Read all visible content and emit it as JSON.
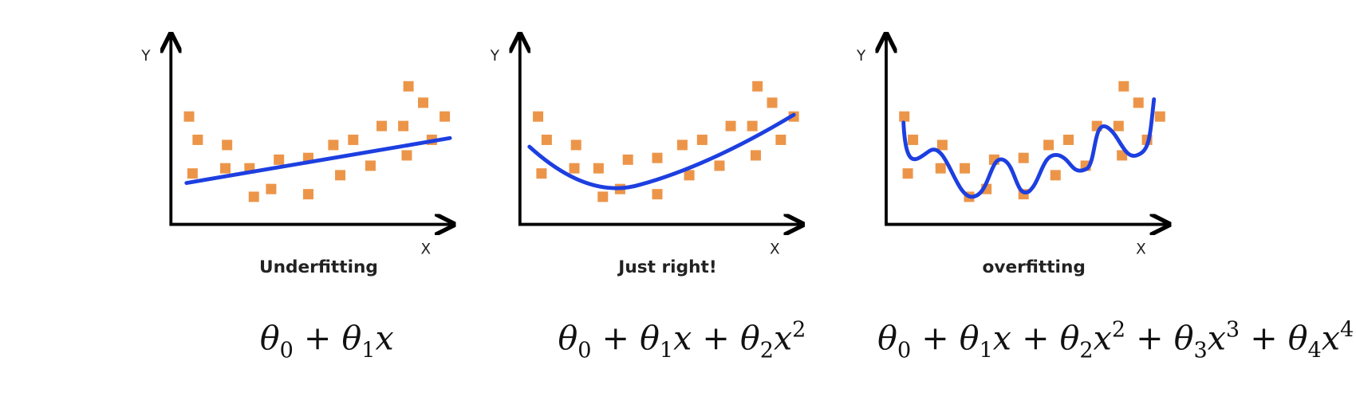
{
  "panels": [
    {
      "y_label": "Y",
      "x_label": "X",
      "caption": "Underfitting",
      "formula": {
        "operator": "+",
        "terms": [
          {
            "symbol": "θ",
            "subscript": "0"
          },
          {
            "symbol": "θ",
            "subscript": "1",
            "variable": "x"
          }
        ]
      }
    },
    {
      "y_label": "Y",
      "x_label": "X",
      "caption": "Just right!",
      "formula": {
        "operator": "+",
        "terms": [
          {
            "symbol": "θ",
            "subscript": "0"
          },
          {
            "symbol": "θ",
            "subscript": "1",
            "variable": "x"
          },
          {
            "symbol": "θ",
            "subscript": "2",
            "variable": "x",
            "power": "2"
          }
        ]
      }
    },
    {
      "y_label": "Y",
      "x_label": "X",
      "caption": "overfitting",
      "formula": {
        "operator": "+",
        "terms": [
          {
            "symbol": "θ",
            "subscript": "0"
          },
          {
            "symbol": "θ",
            "subscript": "1",
            "variable": "x"
          },
          {
            "symbol": "θ",
            "subscript": "2",
            "variable": "x",
            "power": "2"
          },
          {
            "symbol": "θ",
            "subscript": "3",
            "variable": "x",
            "power": "3"
          },
          {
            "symbol": "θ",
            "subscript": "4",
            "variable": "x",
            "power": "4"
          }
        ]
      }
    }
  ]
}
